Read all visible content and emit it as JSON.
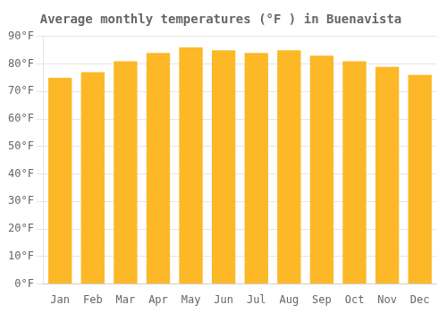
{
  "chart_data": {
    "type": "bar",
    "title": "Average monthly temperatures (°F ) in Buenavista",
    "categories": [
      "Jan",
      "Feb",
      "Mar",
      "Apr",
      "May",
      "Jun",
      "Jul",
      "Aug",
      "Sep",
      "Oct",
      "Nov",
      "Dec"
    ],
    "values": [
      75,
      77,
      81,
      84,
      86,
      85,
      84,
      85,
      83,
      81,
      79,
      76
    ],
    "color": "#FDB827",
    "ylim": [
      0,
      90
    ],
    "yticks": [
      {
        "value": 0,
        "label": "0°F"
      },
      {
        "value": 10,
        "label": "10°F"
      },
      {
        "value": 20,
        "label": "20°F"
      },
      {
        "value": 30,
        "label": "30°F"
      },
      {
        "value": 40,
        "label": "40°F"
      },
      {
        "value": 50,
        "label": "50°F"
      },
      {
        "value": 60,
        "label": "60°F"
      },
      {
        "value": 70,
        "label": "70°F"
      },
      {
        "value": 80,
        "label": "80°F"
      },
      {
        "value": 90,
        "label": "90°F"
      }
    ],
    "grid": true
  }
}
